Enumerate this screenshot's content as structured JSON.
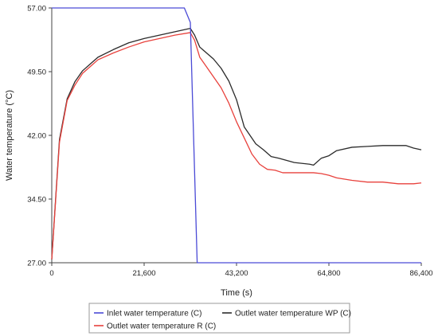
{
  "chart_data": {
    "type": "line",
    "title": "",
    "xlabel": "Time (s)",
    "ylabel": "Water temperature (°C)",
    "xlim": [
      0,
      86400
    ],
    "ylim": [
      27.0,
      57.0
    ],
    "x_ticks": [
      0,
      21600,
      43200,
      64800,
      86400
    ],
    "x_tick_labels": [
      "0",
      "21,600",
      "43,200",
      "64,800",
      "86,400"
    ],
    "y_ticks": [
      27.0,
      34.5,
      42.0,
      49.5,
      57.0
    ],
    "y_tick_labels": [
      "27.00",
      "34.50",
      "42.00",
      "49.50",
      "57.00"
    ],
    "grid": false,
    "legend_position": "bottom",
    "series": [
      {
        "name": "Inlet water temperature (C)",
        "color": "#4a4ad6",
        "x": [
          0,
          31000,
          32400,
          34000,
          86400
        ],
        "y": [
          57.0,
          57.0,
          55.3,
          27.0,
          27.0
        ]
      },
      {
        "name": "Outlet water temperature WP (C)",
        "color": "#2b2b2b",
        "x": [
          0,
          900,
          1800,
          3600,
          5400,
          7200,
          9000,
          10800,
          14400,
          18000,
          21600,
          25200,
          28800,
          32400,
          33400,
          34600,
          37800,
          39600,
          41400,
          43200,
          45000,
          47700,
          49500,
          51300,
          53100,
          56700,
          60300,
          61200,
          63000,
          64800,
          66600,
          70200,
          73800,
          77400,
          81000,
          82800,
          84600,
          86400
        ],
        "y": [
          27.4,
          34.5,
          41.5,
          46.3,
          48.3,
          49.6,
          50.4,
          51.2,
          52.1,
          52.9,
          53.4,
          53.8,
          54.2,
          54.6,
          53.8,
          52.4,
          51.0,
          49.9,
          48.4,
          46.2,
          43.0,
          41.0,
          40.3,
          39.5,
          39.3,
          38.8,
          38.6,
          38.5,
          39.3,
          39.6,
          40.2,
          40.6,
          40.7,
          40.8,
          40.8,
          40.8,
          40.5,
          40.3
        ]
      },
      {
        "name": "Outlet water temperature R (C)",
        "color": "#e8413c",
        "x": [
          0,
          900,
          1800,
          3600,
          5400,
          7200,
          9000,
          10800,
          14400,
          18000,
          21600,
          25200,
          28800,
          32400,
          33400,
          34600,
          36000,
          37800,
          39600,
          41400,
          43200,
          45000,
          46800,
          48600,
          50400,
          52200,
          54000,
          57600,
          61200,
          63000,
          64800,
          66600,
          70200,
          73800,
          77400,
          81000,
          84600,
          86400
        ],
        "y": [
          27.4,
          34.3,
          41.2,
          46.1,
          47.9,
          49.3,
          50.1,
          50.9,
          51.7,
          52.4,
          53.0,
          53.4,
          53.8,
          54.1,
          53.2,
          51.2,
          50.2,
          48.9,
          47.6,
          45.8,
          43.6,
          41.7,
          39.8,
          38.6,
          38.0,
          37.9,
          37.6,
          37.6,
          37.6,
          37.5,
          37.3,
          37.0,
          36.7,
          36.5,
          36.5,
          36.3,
          36.3,
          36.4
        ]
      }
    ]
  }
}
